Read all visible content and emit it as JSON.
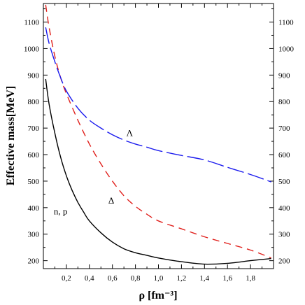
{
  "chart_data": {
    "type": "line",
    "title": "",
    "xlabel": "ρ [fm⁻³]",
    "ylabel": "Effective mass[MeV]",
    "xlim": [
      0,
      2.0
    ],
    "ylim": [
      170,
      1170
    ],
    "x_ticks": [
      0.2,
      0.4,
      0.6,
      0.8,
      1.0,
      1.2,
      1.4,
      1.6,
      1.8
    ],
    "x_tick_labels": [
      "0,2",
      "0,4",
      "0,6",
      "0,8",
      "1,0",
      "1,2",
      "1,4",
      "1,6",
      "1,8"
    ],
    "y_ticks": [
      200,
      300,
      400,
      500,
      600,
      700,
      800,
      900,
      1000,
      1100
    ],
    "y_tick_labels": [
      "200",
      "300",
      "400",
      "500",
      "600",
      "700",
      "800",
      "900",
      "1000",
      "1100"
    ],
    "grid": false,
    "series": [
      {
        "name": "n, p",
        "color": "#000000",
        "dash": "solid",
        "x": [
          0.02,
          0.05,
          0.1,
          0.15,
          0.2,
          0.25,
          0.3,
          0.35,
          0.4,
          0.5,
          0.6,
          0.7,
          0.8,
          0.9,
          1.0,
          1.2,
          1.4,
          1.6,
          1.8,
          1.98
        ],
        "y": [
          885,
          790,
          680,
          590,
          520,
          465,
          420,
          383,
          350,
          305,
          270,
          245,
          230,
          220,
          210,
          196,
          187,
          190,
          200,
          208
        ]
      },
      {
        "name": "Δ",
        "color": "#e0201c",
        "dash": "dashed",
        "x": [
          0.02,
          0.05,
          0.1,
          0.15,
          0.2,
          0.3,
          0.4,
          0.5,
          0.6,
          0.7,
          0.8,
          0.9,
          1.0,
          1.2,
          1.4,
          1.6,
          1.8,
          1.98
        ],
        "y": [
          1165,
          1080,
          970,
          890,
          830,
          730,
          640,
          565,
          500,
          445,
          405,
          375,
          350,
          320,
          290,
          265,
          240,
          210
        ]
      },
      {
        "name": "Λ",
        "color": "#1a1aee",
        "dash": "dashed",
        "x": [
          0.02,
          0.05,
          0.1,
          0.15,
          0.2,
          0.3,
          0.4,
          0.5,
          0.6,
          0.7,
          0.8,
          0.9,
          1.0,
          1.2,
          1.4,
          1.6,
          1.8,
          1.98
        ],
        "y": [
          1080,
          1020,
          950,
          890,
          840,
          775,
          730,
          700,
          675,
          655,
          640,
          628,
          615,
          597,
          580,
          552,
          525,
          497
        ]
      }
    ],
    "annotations": [
      {
        "text": "n, p",
        "x": 0.15,
        "y": 375
      },
      {
        "text": "Δ",
        "x": 0.59,
        "y": 415
      },
      {
        "text": "Λ",
        "x": 0.75,
        "y": 670
      }
    ]
  }
}
